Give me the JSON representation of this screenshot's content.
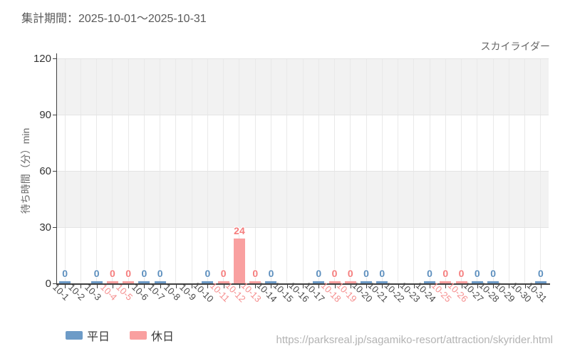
{
  "header": {
    "title": "集計期間：2025-10-01～2025-10-31"
  },
  "chart_data": {
    "type": "bar",
    "title": "スカイライダー",
    "ylabel": "待ち時間（分）min",
    "ylim": [
      0,
      120
    ],
    "yticks": [
      0,
      30,
      60,
      90,
      120
    ],
    "grid": true,
    "legend_position": "bottom-left",
    "categories": [
      "10-1",
      "10-2",
      "10-3",
      "10-4",
      "10-5",
      "10-6",
      "10-7",
      "10-8",
      "10-9",
      "10-10",
      "10-11",
      "10-12",
      "10-13",
      "10-14",
      "10-15",
      "10-16",
      "10-17",
      "10-18",
      "10-19",
      "10-20",
      "10-21",
      "10-22",
      "10-23",
      "10-24",
      "10-25",
      "10-26",
      "10-27",
      "10-28",
      "10-29",
      "10-30",
      "10-31"
    ],
    "holiday_indices": [
      3,
      4,
      10,
      11,
      12,
      17,
      18,
      24,
      25
    ],
    "series": [
      {
        "name": "平日",
        "color": "#6d9bc7",
        "label_color": "#5d8fbe",
        "values": [
          0,
          null,
          0,
          null,
          null,
          0,
          0,
          null,
          null,
          0,
          null,
          null,
          null,
          0,
          null,
          null,
          0,
          null,
          null,
          0,
          0,
          null,
          null,
          0,
          null,
          null,
          0,
          0,
          null,
          null,
          0
        ]
      },
      {
        "name": "休日",
        "color": "#f9a0a0",
        "label_color": "#f57d7d",
        "values": [
          null,
          null,
          null,
          0,
          0,
          null,
          null,
          null,
          null,
          null,
          0,
          24,
          0,
          null,
          null,
          null,
          null,
          0,
          0,
          null,
          null,
          null,
          null,
          null,
          0,
          0,
          null,
          null,
          null,
          null,
          null
        ]
      }
    ],
    "style": {
      "axis_color": "#3f3f3f",
      "grid_color": "#e9e9e9",
      "band_color": "#f2f2f2",
      "ytick_label_color": "#333333",
      "xtick_label_color": "#4b4b4b",
      "xtick_holiday_label_color": "#f58f8f"
    }
  },
  "footer": {
    "url": "https://parksreal.jp/sagamiko-resort/attraction/skyrider.html"
  }
}
